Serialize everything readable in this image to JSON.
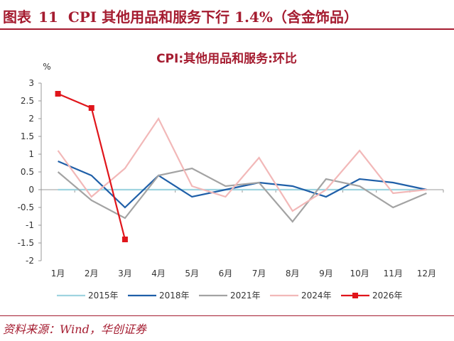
{
  "figure": {
    "label": "图表",
    "number": "11",
    "caption": "CPI 其他用品和服务下行 1.4%（含金饰品）",
    "source": "资料来源：Wind，华创证券"
  },
  "colors": {
    "accent": "#a51c30"
  },
  "chart_data": {
    "type": "line",
    "title": "CPI:其他用品和服务:环比",
    "ylabel": "%",
    "xlabel": "",
    "ylim": [
      -2,
      3
    ],
    "yticks": [
      "3",
      "2.5",
      "2",
      "1.5",
      "1",
      "0.5",
      "0",
      "-0.5",
      "-1",
      "-1.5",
      "-2"
    ],
    "categories": [
      "1月",
      "2月",
      "3月",
      "4月",
      "5月",
      "6月",
      "7月",
      "8月",
      "9月",
      "10月",
      "11月",
      "12月"
    ],
    "legend_position": "bottom",
    "grid": false,
    "series": [
      {
        "name": "2015年",
        "color": "#9fd4e0",
        "marker": false,
        "values": [
          0,
          0,
          0,
          0,
          0,
          0,
          0,
          0,
          0,
          0,
          0,
          0
        ]
      },
      {
        "name": "2018年",
        "color": "#1f5fa8",
        "marker": false,
        "values": [
          0.8,
          0.4,
          -0.5,
          0.4,
          -0.2,
          0,
          0.2,
          0.1,
          -0.2,
          0.3,
          0.2,
          0
        ]
      },
      {
        "name": "2021年",
        "color": "#a3a3a3",
        "marker": false,
        "values": [
          0.5,
          -0.3,
          -0.8,
          0.4,
          0.6,
          0.1,
          0.2,
          -0.9,
          0.3,
          0.1,
          -0.5,
          -0.1
        ]
      },
      {
        "name": "2024年",
        "color": "#f2b8b8",
        "marker": false,
        "values": [
          1.1,
          -0.2,
          0.6,
          2.0,
          0.1,
          -0.2,
          0.9,
          -0.6,
          0,
          1.1,
          -0.1,
          0
        ]
      },
      {
        "name": "2026年",
        "color": "#e0151b",
        "marker": true,
        "values": [
          2.7,
          2.3,
          -1.4,
          null,
          null,
          null,
          null,
          null,
          null,
          null,
          null,
          null
        ]
      }
    ]
  }
}
